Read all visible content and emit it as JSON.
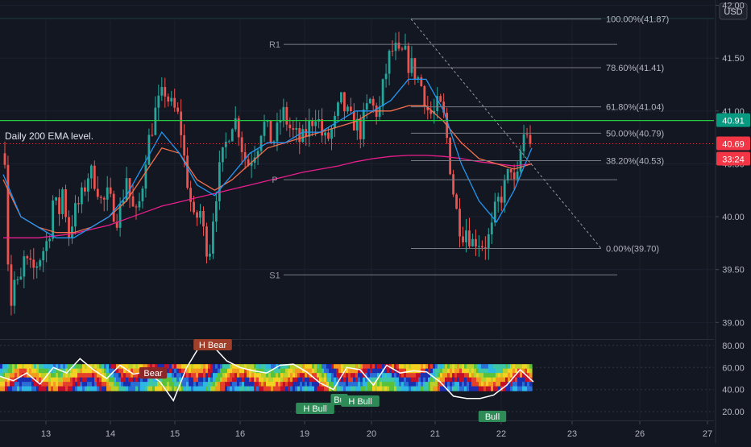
{
  "header": {
    "currency": "USD"
  },
  "chart_data": {
    "type": "candlestick",
    "price_axis": {
      "ylim": [
        38.85,
        42.05
      ],
      "ticks": [
        "42.00",
        "41.50",
        "41.00",
        "40.50",
        "40.00",
        "39.50",
        "39.00"
      ]
    },
    "time_axis": {
      "labels": [
        "13",
        "14",
        "15",
        "16",
        "19",
        "20",
        "21",
        "22",
        "23",
        "26",
        "27"
      ]
    },
    "price_badges": [
      {
        "value": "40.91",
        "color": "#089981"
      },
      {
        "value": "40.69",
        "color": "#f23645"
      },
      {
        "value": "33:24",
        "color": "#f23645"
      }
    ],
    "annotation": "Daily 200 EMA level.",
    "ema200_level": 40.91,
    "last_price": 40.69,
    "pivots": [
      {
        "label": "R1",
        "value": 41.63
      },
      {
        "label": "P",
        "value": 40.35
      },
      {
        "label": "S1",
        "value": 39.45
      }
    ],
    "fibonacci": [
      {
        "label": "100.00%(41.87)",
        "value": 41.87
      },
      {
        "label": "78.60%(41.41)",
        "value": 41.41
      },
      {
        "label": "61.80%(41.04)",
        "value": 41.04
      },
      {
        "label": "50.00%(40.79)",
        "value": 40.79
      },
      {
        "label": "38.20%(40.53)",
        "value": 40.53
      },
      {
        "label": "0.00%(39.70)",
        "value": 39.7
      }
    ],
    "oscillator": {
      "ylim": [
        15,
        85
      ],
      "ticks": [
        "80.00",
        "60.00",
        "40.00",
        "20.00"
      ],
      "signals": [
        "H Bear",
        "Bear",
        "H Bull",
        "Bu",
        "H Bull",
        "Bull"
      ]
    },
    "candle_anchors": [
      40.6,
      39.1,
      39.4,
      39.3,
      39.6,
      39.5,
      39.5,
      39.6,
      39.7,
      39.8,
      40.2,
      40.0,
      40.3,
      39.8,
      40.0,
      40.1,
      40.2,
      40.4,
      40.4,
      40.3,
      40.1,
      40.2,
      40.1,
      40.0,
      40.1,
      40.4,
      40.1,
      40.0,
      40.2,
      40.6,
      40.8,
      41.0,
      41.1,
      41.2,
      41.05,
      41.0,
      40.9,
      40.5,
      40.2,
      39.9,
      40.1,
      39.8,
      39.65,
      40.1,
      40.4,
      40.6,
      40.8,
      40.95,
      40.85,
      40.6,
      40.5,
      40.6,
      40.7,
      40.9,
      40.8,
      40.7,
      40.8,
      41.0,
      40.9,
      40.8,
      40.75,
      40.7,
      40.8,
      40.9,
      41.0,
      40.8,
      40.7,
      40.8,
      40.9,
      41.1,
      41.0,
      40.9,
      40.9,
      40.8,
      40.95,
      41.1,
      41.0,
      41.0,
      41.3,
      41.5,
      41.6,
      41.5,
      41.55,
      41.45,
      41.4,
      41.3,
      41.2,
      41.0,
      40.95,
      41.05,
      41.0,
      40.7,
      40.3,
      40.0,
      39.85,
      39.9,
      39.75,
      39.8,
      39.75,
      39.75,
      39.85,
      40.1,
      40.2,
      40.3,
      40.5,
      40.2,
      40.6,
      40.85,
      40.7
    ],
    "ema_fast": [
      40.4,
      40.0,
      39.9,
      39.8,
      39.8,
      39.9,
      40.0,
      40.2,
      40.5,
      40.8,
      40.6,
      40.3,
      40.2,
      40.4,
      40.6,
      40.7,
      40.7,
      40.8,
      40.8,
      40.9,
      41.0,
      41.0,
      41.1,
      41.3,
      41.3,
      41.0,
      40.5,
      40.15,
      39.95,
      40.25,
      40.65
    ],
    "ema_mid": [
      40.35,
      40.0,
      39.9,
      39.85,
      39.85,
      39.9,
      40.0,
      40.15,
      40.4,
      40.65,
      40.6,
      40.35,
      40.25,
      40.35,
      40.5,
      40.65,
      40.7,
      40.75,
      40.8,
      40.85,
      40.9,
      41.0,
      41.0,
      41.05,
      41.05,
      40.9,
      40.7,
      40.55,
      40.5,
      40.45,
      40.5
    ],
    "ema_slow": [
      39.8,
      39.8,
      39.8,
      39.82,
      39.84,
      39.88,
      39.92,
      39.98,
      40.04,
      40.1,
      40.14,
      40.18,
      40.22,
      40.26,
      40.3,
      40.34,
      40.38,
      40.42,
      40.45,
      40.48,
      40.52,
      40.55,
      40.57,
      40.58,
      40.58,
      40.57,
      40.55,
      40.52,
      40.5,
      40.48,
      40.5
    ],
    "osc_line": [
      52,
      48,
      55,
      45,
      60,
      55,
      68,
      58,
      50,
      62,
      54,
      56,
      47,
      30,
      60,
      80,
      79,
      66,
      60,
      57,
      55,
      62,
      63,
      56,
      46,
      40,
      60,
      58,
      44,
      62,
      55,
      57,
      56,
      47,
      34,
      32,
      32,
      35,
      44,
      58,
      47
    ]
  }
}
